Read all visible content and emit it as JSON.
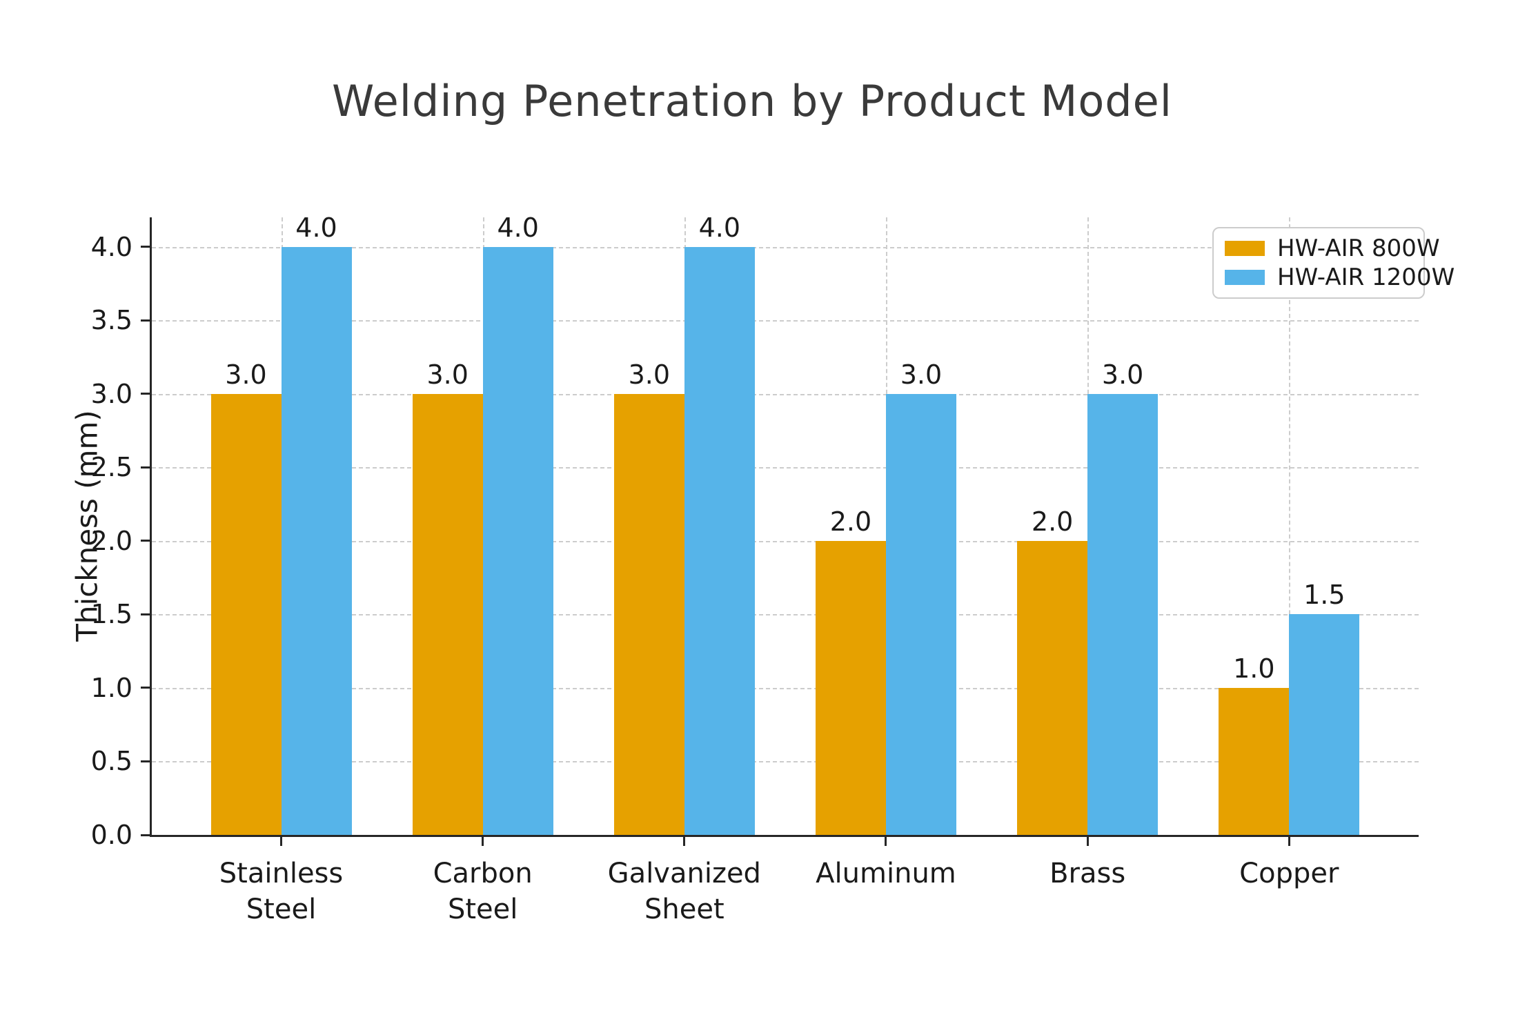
{
  "chart_data": {
    "type": "bar",
    "title": "Welding Penetration by Product Model",
    "xlabel": "",
    "ylabel": "Thickness (mm)",
    "categories": [
      "Stainless Steel",
      "Carbon Steel",
      "Galvanized Sheet",
      "Aluminum",
      "Brass",
      "Copper"
    ],
    "category_label_lines": [
      [
        "Stainless",
        "Steel"
      ],
      [
        "Carbon",
        "Steel"
      ],
      [
        "Galvanized",
        "Sheet"
      ],
      [
        "Aluminum"
      ],
      [
        "Brass"
      ],
      [
        "Copper"
      ]
    ],
    "series": [
      {
        "name": "HW-AIR 800W",
        "color": "#E6A100",
        "values": [
          3.0,
          3.0,
          3.0,
          2.0,
          2.0,
          1.0
        ],
        "value_labels": [
          "3.0",
          "3.0",
          "3.0",
          "2.0",
          "2.0",
          "1.0"
        ]
      },
      {
        "name": "HW-AIR 1200W",
        "color": "#56B4E9",
        "values": [
          4.0,
          4.0,
          4.0,
          3.0,
          3.0,
          1.5
        ],
        "value_labels": [
          "4.0",
          "4.0",
          "4.0",
          "3.0",
          "3.0",
          "1.5"
        ]
      }
    ],
    "ylim": [
      0,
      4.2
    ],
    "ytick_values": [
      0.0,
      0.5,
      1.0,
      1.5,
      2.0,
      2.5,
      3.0,
      3.5,
      4.0
    ],
    "ytick_labels": [
      "0.0",
      "0.5",
      "1.0",
      "1.5",
      "2.0",
      "2.5",
      "3.0",
      "3.5",
      "4.0"
    ],
    "grid": "dashed, horizontal at each 0.5 and vertical at each category center",
    "legend_position": "upper right",
    "bar_group": "grouped pairs, no gap between pair members"
  },
  "legend": {
    "items": [
      {
        "label": "HW-AIR 800W",
        "color": "#E6A100"
      },
      {
        "label": "HW-AIR 1200W",
        "color": "#56B4E9"
      }
    ]
  }
}
